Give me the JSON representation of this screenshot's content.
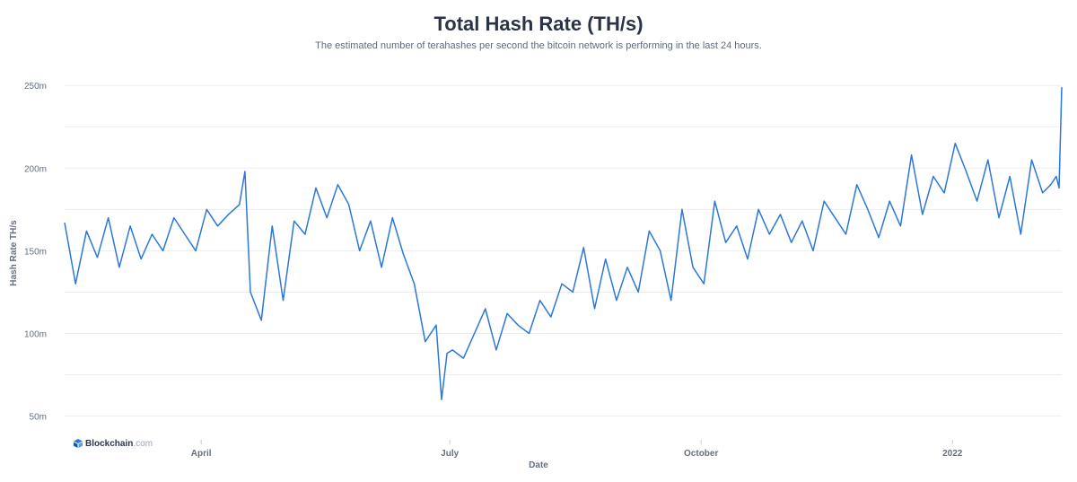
{
  "page": {
    "title": "Total Hash Rate (TH/s)",
    "subtitle": "The estimated number of terahashes per second the bitcoin network is performing in the last 24 hours."
  },
  "brand": {
    "name": "Blockchain",
    "suffix": ".com",
    "icon": "blockchain-logo-icon"
  },
  "colors": {
    "line": "#2b78d8",
    "grid": "#ebedf0",
    "text": "#646f80"
  },
  "chart_data": {
    "type": "line",
    "title": "Total Hash Rate (TH/s)",
    "xlabel": "Date",
    "ylabel": "Hash Rate TH/s",
    "ylim": [
      40,
      255
    ],
    "yticks": [
      {
        "value": 50,
        "label": "50m"
      },
      {
        "value": 100,
        "label": "100m"
      },
      {
        "value": 150,
        "label": "150m"
      },
      {
        "value": 200,
        "label": "200m"
      },
      {
        "value": 250,
        "label": "250m"
      }
    ],
    "xlim": [
      "2021-02-10",
      "2022-02-10"
    ],
    "xticks": [
      {
        "value": "2021-04-01",
        "label": "April"
      },
      {
        "value": "2021-07-01",
        "label": "July"
      },
      {
        "value": "2021-10-01",
        "label": "October"
      },
      {
        "value": "2022-01-01",
        "label": "2022"
      }
    ],
    "grid": true,
    "legend": "none",
    "series": [
      {
        "x": [
          "2021-02-10",
          "2021-02-14",
          "2021-02-18",
          "2021-02-22",
          "2021-02-26",
          "2021-03-02",
          "2021-03-06",
          "2021-03-10",
          "2021-03-14",
          "2021-03-18",
          "2021-03-22",
          "2021-03-26",
          "2021-03-30",
          "2021-04-03",
          "2021-04-07",
          "2021-04-11",
          "2021-04-15",
          "2021-04-17",
          "2021-04-19",
          "2021-04-23",
          "2021-04-27",
          "2021-05-01",
          "2021-05-05",
          "2021-05-09",
          "2021-05-13",
          "2021-05-17",
          "2021-05-21",
          "2021-05-25",
          "2021-05-29",
          "2021-06-02",
          "2021-06-06",
          "2021-06-10",
          "2021-06-14",
          "2021-06-18",
          "2021-06-22",
          "2021-06-26",
          "2021-06-28",
          "2021-06-30",
          "2021-07-02",
          "2021-07-06",
          "2021-07-10",
          "2021-07-14",
          "2021-07-18",
          "2021-07-22",
          "2021-07-26",
          "2021-07-30",
          "2021-08-03",
          "2021-08-07",
          "2021-08-11",
          "2021-08-15",
          "2021-08-19",
          "2021-08-23",
          "2021-08-27",
          "2021-08-31",
          "2021-09-04",
          "2021-09-08",
          "2021-09-12",
          "2021-09-16",
          "2021-09-20",
          "2021-09-24",
          "2021-09-28",
          "2021-10-02",
          "2021-10-06",
          "2021-10-10",
          "2021-10-14",
          "2021-10-18",
          "2021-10-22",
          "2021-10-26",
          "2021-10-30",
          "2021-11-03",
          "2021-11-07",
          "2021-11-11",
          "2021-11-15",
          "2021-11-19",
          "2021-11-23",
          "2021-11-27",
          "2021-12-01",
          "2021-12-05",
          "2021-12-09",
          "2021-12-13",
          "2021-12-17",
          "2021-12-21",
          "2021-12-25",
          "2021-12-29",
          "2022-01-02",
          "2022-01-06",
          "2022-01-10",
          "2022-01-14",
          "2022-01-18",
          "2022-01-22",
          "2022-01-26",
          "2022-01-30",
          "2022-02-03",
          "2022-02-06",
          "2022-02-08",
          "2022-02-09",
          "2022-02-10"
        ],
        "values": [
          167,
          130,
          162,
          146,
          170,
          140,
          165,
          145,
          160,
          150,
          170,
          160,
          150,
          175,
          165,
          172,
          178,
          198,
          125,
          108,
          165,
          120,
          168,
          160,
          188,
          170,
          190,
          178,
          150,
          168,
          140,
          170,
          148,
          130,
          95,
          105,
          60,
          88,
          90,
          85,
          100,
          115,
          90,
          112,
          105,
          100,
          120,
          110,
          130,
          125,
          152,
          115,
          145,
          120,
          140,
          125,
          162,
          150,
          120,
          175,
          140,
          130,
          180,
          155,
          165,
          145,
          175,
          160,
          172,
          155,
          168,
          150,
          180,
          170,
          160,
          190,
          175,
          158,
          180,
          165,
          208,
          172,
          195,
          185,
          215,
          198,
          180,
          205,
          170,
          195,
          160,
          205,
          185,
          190,
          195,
          188,
          249
        ]
      }
    ]
  }
}
